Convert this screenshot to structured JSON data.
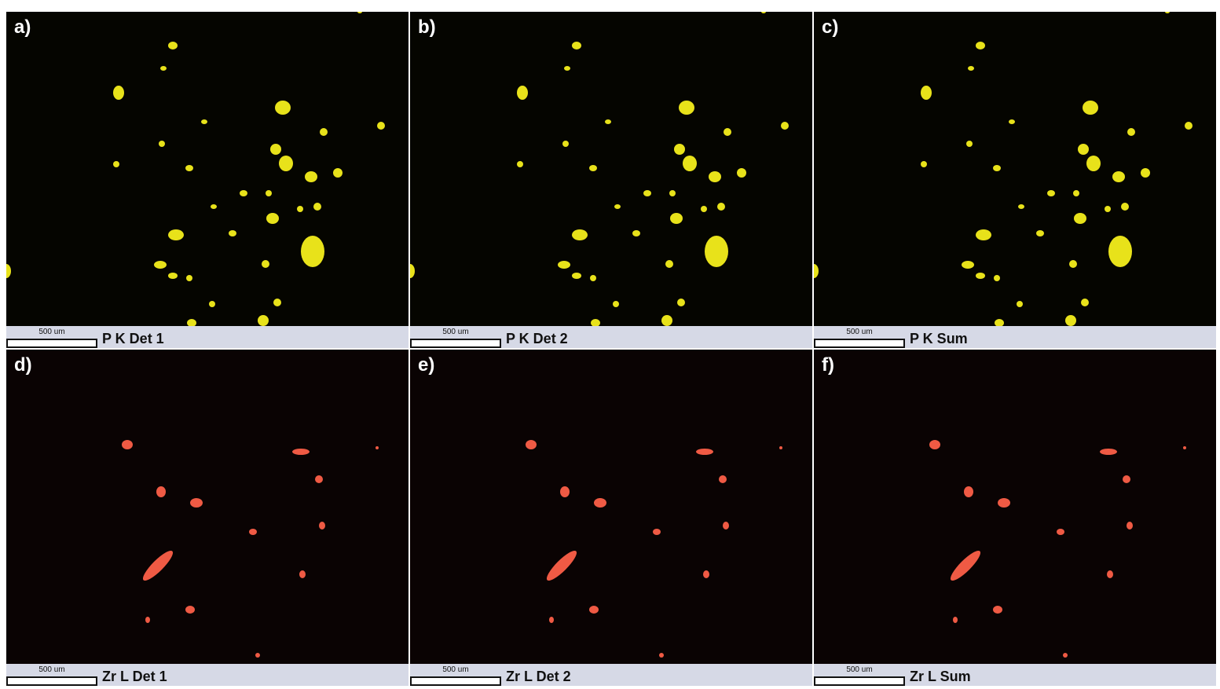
{
  "panels": [
    {
      "label": "a)",
      "scale": "500 um",
      "title": "P K Det 1"
    },
    {
      "label": "b)",
      "scale": "500 um",
      "title": "P K Det 2"
    },
    {
      "label": "c)",
      "scale": "500 um",
      "title": "P K Sum"
    },
    {
      "label": "d)",
      "scale": "500 um",
      "title": "Zr L Det 1"
    },
    {
      "label": "e)",
      "scale": "500 um",
      "title": "Zr L Det 2"
    },
    {
      "label": "f)",
      "scale": "500 um",
      "title": "Zr L Sum"
    }
  ]
}
